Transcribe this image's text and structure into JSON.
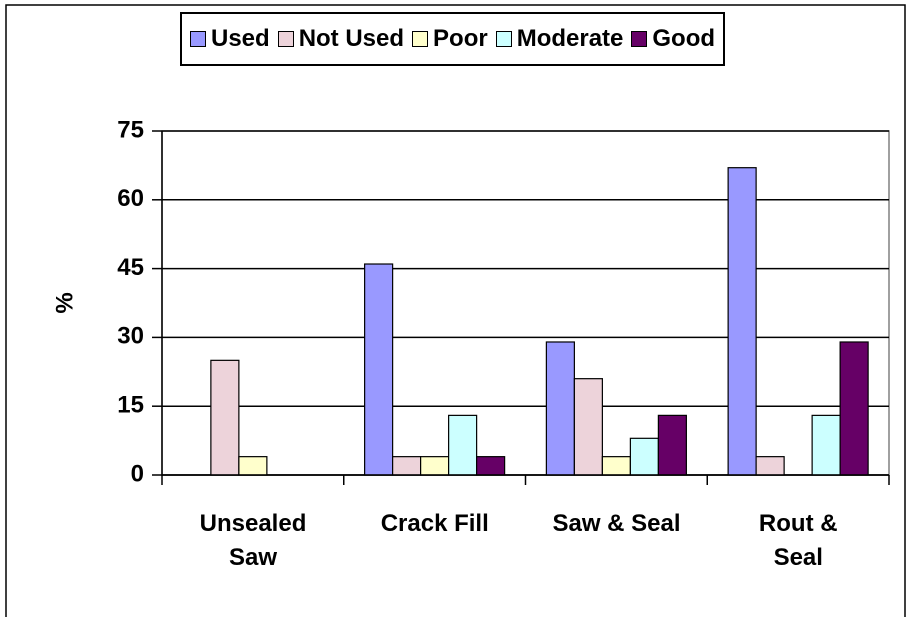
{
  "chart_data": {
    "type": "bar",
    "y_label": "%",
    "categories": [
      "Unsealed\nSaw",
      "Crack Fill",
      "Saw & Seal",
      "Rout &\nSeal"
    ],
    "series": [
      {
        "name": "Used",
        "color": "#9999ff",
        "values": [
          0,
          46,
          29,
          67
        ]
      },
      {
        "name": "Not Used",
        "color": "#edd3da",
        "values": [
          25,
          4,
          21,
          4
        ]
      },
      {
        "name": "Poor",
        "color": "#ffffcc",
        "values": [
          4,
          4,
          4,
          0
        ]
      },
      {
        "name": "Moderate",
        "color": "#ccffff",
        "values": [
          0,
          13,
          8,
          13
        ]
      },
      {
        "name": "Good",
        "color": "#660066",
        "values": [
          0,
          4,
          13,
          29
        ]
      }
    ],
    "ylim": [
      0,
      75
    ],
    "yticks": [
      0,
      15,
      30,
      45,
      60,
      75
    ],
    "grid": true
  }
}
